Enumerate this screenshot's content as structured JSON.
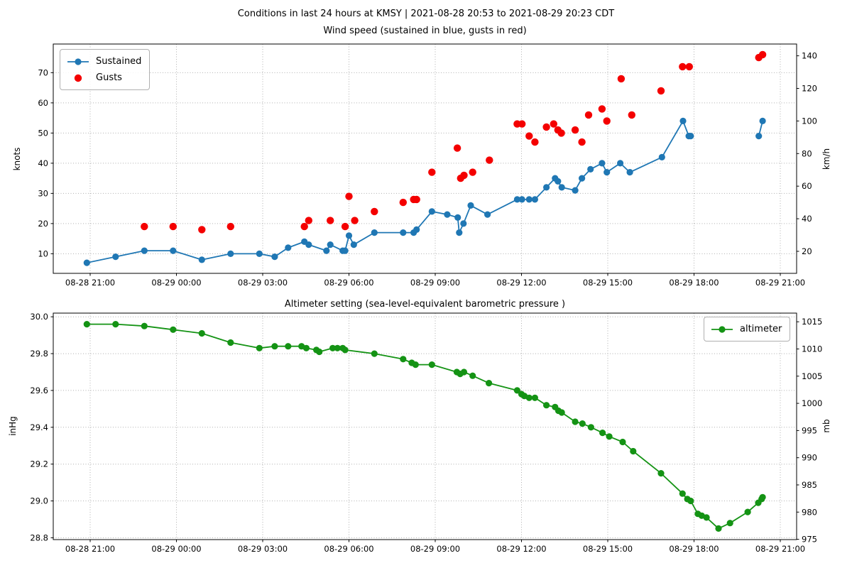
{
  "figure": {
    "title": "Conditions in last 24 hours at KMSY | 2021-08-28 20:53 to 2021-08-29 20:23 CDT",
    "background": "#ffffff",
    "grid_color": "#b0b0b0"
  },
  "x_axis": {
    "xlim": [
      "08-28 19:43",
      "08-29 21:34"
    ],
    "tick_labels": [
      "08-28 21:00",
      "08-29 00:00",
      "08-29 03:00",
      "08-29 06:00",
      "08-29 09:00",
      "08-29 12:00",
      "08-29 15:00",
      "08-29 18:00",
      "08-29 21:00"
    ]
  },
  "chart_data": [
    {
      "type": "line",
      "title": "Wind speed (sustained in blue, gusts in red)",
      "ylabel": "knots",
      "ylabel_right": "km/h",
      "ylim": [
        3.5,
        79.5
      ],
      "yticks": [
        10,
        20,
        30,
        40,
        50,
        60,
        70
      ],
      "yticks_right": [
        20,
        40,
        60,
        80,
        100,
        120,
        140
      ],
      "right_axis_factor": 1.852,
      "grid": true,
      "legend": {
        "position": "upper-left",
        "entries": [
          {
            "label": "Sustained",
            "color": "#1f77b4",
            "marker": "line-dot"
          },
          {
            "label": "Gusts",
            "color": "#f40000",
            "marker": "dot"
          }
        ]
      },
      "series": [
        {
          "name": "Sustained",
          "color": "#1f77b4",
          "style": "line-dot",
          "points": [
            [
              "08-28 20:53",
              7
            ],
            [
              "08-28 21:53",
              9
            ],
            [
              "08-28 22:53",
              11
            ],
            [
              "08-28 23:53",
              11
            ],
            [
              "08-29 00:53",
              8
            ],
            [
              "08-29 01:53",
              10
            ],
            [
              "08-29 02:53",
              10
            ],
            [
              "08-29 03:25",
              9
            ],
            [
              "08-29 03:53",
              12
            ],
            [
              "08-29 04:27",
              14
            ],
            [
              "08-29 04:36",
              13
            ],
            [
              "08-29 05:13",
              11
            ],
            [
              "08-29 05:21",
              13
            ],
            [
              "08-29 05:47",
              11
            ],
            [
              "08-29 05:52",
              11
            ],
            [
              "08-29 06:00",
              16
            ],
            [
              "08-29 06:10",
              13
            ],
            [
              "08-29 06:53",
              17
            ],
            [
              "08-29 07:53",
              17
            ],
            [
              "08-29 08:15",
              17
            ],
            [
              "08-29 08:21",
              18
            ],
            [
              "08-29 08:53",
              24
            ],
            [
              "08-29 09:25",
              23
            ],
            [
              "08-29 09:47",
              22
            ],
            [
              "08-29 09:50",
              17
            ],
            [
              "08-29 09:59",
              20
            ],
            [
              "08-29 10:14",
              26
            ],
            [
              "08-29 10:49",
              23
            ],
            [
              "08-29 11:51",
              28
            ],
            [
              "08-29 12:01",
              28
            ],
            [
              "08-29 12:16",
              28
            ],
            [
              "08-29 12:28",
              28
            ],
            [
              "08-29 12:52",
              32
            ],
            [
              "08-29 13:10",
              35
            ],
            [
              "08-29 13:16",
              34
            ],
            [
              "08-29 13:24",
              32
            ],
            [
              "08-29 13:52",
              31
            ],
            [
              "08-29 14:06",
              35
            ],
            [
              "08-29 14:24",
              38
            ],
            [
              "08-29 14:48",
              40
            ],
            [
              "08-29 14:58",
              37
            ],
            [
              "08-29 15:26",
              40
            ],
            [
              "08-29 15:46",
              37
            ],
            [
              "08-29 16:53",
              42
            ],
            [
              "08-29 17:37",
              54
            ],
            [
              "08-29 17:49",
              49
            ],
            [
              "08-29 17:53",
              49
            ],
            [
              "08-29 20:15",
              49
            ],
            [
              "08-29 20:23",
              54
            ]
          ]
        },
        {
          "name": "Gusts",
          "color": "#f40000",
          "style": "dot",
          "points": [
            [
              "08-28 22:53",
              19
            ],
            [
              "08-28 23:53",
              19
            ],
            [
              "08-29 00:53",
              18
            ],
            [
              "08-29 01:53",
              19
            ],
            [
              "08-29 04:27",
              19
            ],
            [
              "08-29 04:36",
              21
            ],
            [
              "08-29 05:21",
              21
            ],
            [
              "08-29 05:52",
              19
            ],
            [
              "08-29 06:00",
              29
            ],
            [
              "08-29 06:12",
              21
            ],
            [
              "08-29 06:53",
              24
            ],
            [
              "08-29 07:53",
              27
            ],
            [
              "08-29 08:15",
              28
            ],
            [
              "08-29 08:21",
              28
            ],
            [
              "08-29 08:53",
              37
            ],
            [
              "08-29 09:46",
              45
            ],
            [
              "08-29 09:53",
              35
            ],
            [
              "08-29 10:00",
              36
            ],
            [
              "08-29 10:18",
              37
            ],
            [
              "08-29 10:53",
              41
            ],
            [
              "08-29 11:51",
              53
            ],
            [
              "08-29 12:01",
              53
            ],
            [
              "08-29 12:16",
              49
            ],
            [
              "08-29 12:28",
              47
            ],
            [
              "08-29 12:52",
              52
            ],
            [
              "08-29 13:07",
              53
            ],
            [
              "08-29 13:16",
              51
            ],
            [
              "08-29 13:23",
              50
            ],
            [
              "08-29 13:52",
              51
            ],
            [
              "08-29 14:06",
              47
            ],
            [
              "08-29 14:20",
              56
            ],
            [
              "08-29 14:48",
              58
            ],
            [
              "08-29 14:58",
              54
            ],
            [
              "08-29 15:28",
              68
            ],
            [
              "08-29 15:50",
              56
            ],
            [
              "08-29 16:51",
              64
            ],
            [
              "08-29 17:36",
              72
            ],
            [
              "08-29 17:50",
              72
            ],
            [
              "08-29 20:15",
              75
            ],
            [
              "08-29 20:23",
              76
            ]
          ]
        }
      ]
    },
    {
      "type": "line",
      "title": "Altimeter setting (sea-level-equivalent barometric pressure )",
      "ylabel": "inHg",
      "ylabel_right": "mb",
      "ylim": [
        28.79,
        30.02
      ],
      "yticks": [
        28.8,
        29.0,
        29.2,
        29.4,
        29.6,
        29.8,
        30.0
      ],
      "yticks_right": [
        975,
        980,
        985,
        990,
        995,
        1000,
        1005,
        1010,
        1015
      ],
      "right_axis_factor": 33.8639,
      "grid": true,
      "legend": {
        "position": "upper-right",
        "entries": [
          {
            "label": "altimeter",
            "color": "#149314",
            "marker": "line-dot"
          }
        ]
      },
      "series": [
        {
          "name": "altimeter",
          "color": "#149314",
          "style": "line-dot",
          "points": [
            [
              "08-28 20:53",
              29.96
            ],
            [
              "08-28 21:53",
              29.96
            ],
            [
              "08-28 22:53",
              29.95
            ],
            [
              "08-28 23:53",
              29.93
            ],
            [
              "08-29 00:53",
              29.91
            ],
            [
              "08-29 01:53",
              29.86
            ],
            [
              "08-29 02:53",
              29.83
            ],
            [
              "08-29 03:25",
              29.84
            ],
            [
              "08-29 03:53",
              29.84
            ],
            [
              "08-29 04:21",
              29.84
            ],
            [
              "08-29 04:31",
              29.83
            ],
            [
              "08-29 04:52",
              29.82
            ],
            [
              "08-29 04:58",
              29.81
            ],
            [
              "08-29 05:26",
              29.83
            ],
            [
              "08-29 05:36",
              29.83
            ],
            [
              "08-29 05:47",
              29.83
            ],
            [
              "08-29 05:52",
              29.82
            ],
            [
              "08-29 06:53",
              29.8
            ],
            [
              "08-29 07:53",
              29.77
            ],
            [
              "08-29 08:11",
              29.75
            ],
            [
              "08-29 08:19",
              29.74
            ],
            [
              "08-29 08:53",
              29.74
            ],
            [
              "08-29 09:45",
              29.7
            ],
            [
              "08-29 09:52",
              29.69
            ],
            [
              "08-29 10:00",
              29.7
            ],
            [
              "08-29 10:18",
              29.68
            ],
            [
              "08-29 10:52",
              29.64
            ],
            [
              "08-29 11:51",
              29.6
            ],
            [
              "08-29 12:00",
              29.58
            ],
            [
              "08-29 12:06",
              29.57
            ],
            [
              "08-29 12:16",
              29.56
            ],
            [
              "08-29 12:28",
              29.56
            ],
            [
              "08-29 12:52",
              29.52
            ],
            [
              "08-29 13:10",
              29.51
            ],
            [
              "08-29 13:17",
              29.49
            ],
            [
              "08-29 13:24",
              29.48
            ],
            [
              "08-29 13:52",
              29.43
            ],
            [
              "08-29 14:07",
              29.42
            ],
            [
              "08-29 14:25",
              29.4
            ],
            [
              "08-29 14:49",
              29.37
            ],
            [
              "08-29 15:03",
              29.35
            ],
            [
              "08-29 15:31",
              29.32
            ],
            [
              "08-29 15:53",
              29.27
            ],
            [
              "08-29 16:51",
              29.15
            ],
            [
              "08-29 17:36",
              29.04
            ],
            [
              "08-29 17:46",
              29.01
            ],
            [
              "08-29 17:53",
              29.0
            ],
            [
              "08-29 18:08",
              28.93
            ],
            [
              "08-29 18:16",
              28.92
            ],
            [
              "08-29 18:26",
              28.91
            ],
            [
              "08-29 18:51",
              28.85
            ],
            [
              "08-29 19:15",
              28.88
            ],
            [
              "08-29 19:52",
              28.94
            ],
            [
              "08-29 20:14",
              28.99
            ],
            [
              "08-29 20:21",
              29.01
            ],
            [
              "08-29 20:23",
              29.02
            ]
          ]
        }
      ]
    }
  ]
}
